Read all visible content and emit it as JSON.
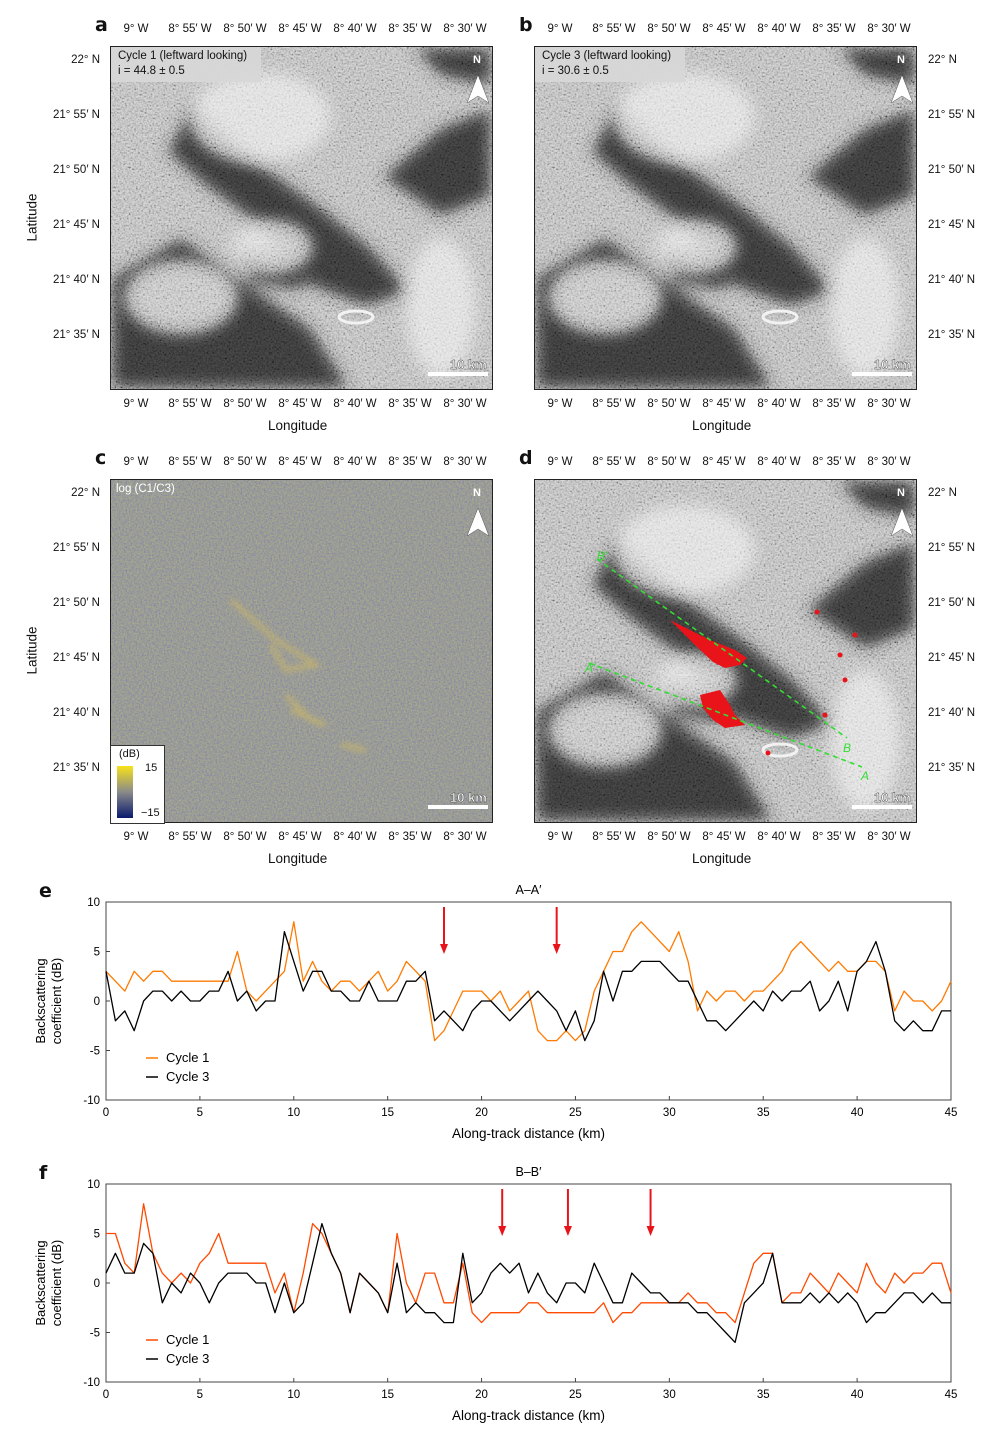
{
  "panels": {
    "a": {
      "letter": "a",
      "caption_line1": "Cycle 1 (leftward looking)",
      "caption_line2": "i = 44.8 ± 0.5",
      "north": "N",
      "scale": "10 km",
      "xlabel": "Longitude",
      "ylabel": "Latitude",
      "imagery": "SAR backscatter, grayscale"
    },
    "b": {
      "letter": "b",
      "caption_line1": "Cycle 3 (leftward looking)",
      "caption_line2": "i = 30.6 ± 0.5",
      "north": "N",
      "scale": "10 km",
      "xlabel": "Longitude"
    },
    "c": {
      "letter": "c",
      "caption_line1": "log (C1/C3)",
      "north": "N",
      "scale": "10 km",
      "xlabel": "Longitude",
      "ylabel": "Latitude",
      "colorbar": {
        "unit": "(dB)",
        "max": "15",
        "min": "−15",
        "colors": [
          "#0a1a6e",
          "#8a8a8a",
          "#f7e21a"
        ]
      }
    },
    "d": {
      "letter": "d",
      "north": "N",
      "scale": "10 km",
      "xlabel": "Longitude",
      "profile_labels": {
        "a_start": "A′",
        "a_end": "A",
        "b_start": "B′",
        "b_end": "B"
      },
      "overlay_colors": {
        "change": "#e8141a",
        "profile": "#33dd33"
      }
    }
  },
  "lon_ticks": [
    "9° W",
    "8° 55′ W",
    "8° 50′ W",
    "8° 45′ W",
    "8° 40′ W",
    "8° 35′ W",
    "8° 30′ W"
  ],
  "lat_ticks": [
    "22° N",
    "21° 55′ N",
    "21° 50′ N",
    "21° 45′ N",
    "21° 40′ N",
    "21° 35′ N"
  ],
  "chart_data": [
    {
      "panel": "e",
      "type": "line",
      "title": "A–A′",
      "xlabel": "Along-track distance (km)",
      "ylabel": "Backscattering coefficient (dB)",
      "xlim": [
        0,
        45
      ],
      "ylim": [
        -10,
        10
      ],
      "xticks": [
        0,
        5,
        10,
        15,
        20,
        25,
        30,
        35,
        40,
        45
      ],
      "yticks": [
        -10,
        -5,
        0,
        5,
        10
      ],
      "grid": false,
      "legend": "bottom-left",
      "arrows_km": [
        18,
        24
      ],
      "x_step_km": 0.5,
      "series": [
        {
          "name": "Cycle 1",
          "color": "#ff7a00",
          "values": [
            3,
            2,
            1,
            3,
            2,
            3,
            3,
            2,
            2,
            2,
            2,
            2,
            2,
            2,
            5,
            1,
            0,
            1,
            2,
            3,
            8,
            2,
            4,
            2,
            1,
            2,
            2,
            1,
            2,
            3,
            1,
            2,
            4,
            3,
            2,
            -4,
            -3,
            -1,
            1,
            1,
            1,
            0,
            1,
            -1,
            0,
            1,
            -3,
            -4,
            -4,
            -3,
            -4,
            -3,
            1,
            3,
            5,
            5,
            7,
            8,
            7,
            6,
            5,
            7,
            4,
            -1,
            1,
            0,
            1,
            1,
            0,
            1,
            1,
            2,
            3,
            5,
            6,
            5,
            4,
            3,
            4,
            3,
            3,
            4,
            4,
            3,
            -1,
            1,
            0,
            0,
            -1,
            0,
            2
          ]
        },
        {
          "name": "Cycle 3",
          "color": "#000000",
          "values": [
            3,
            -2,
            -1,
            -3,
            0,
            1,
            1,
            0,
            1,
            0,
            0,
            1,
            1,
            3,
            0,
            1,
            -1,
            0,
            0,
            7,
            4,
            1,
            3,
            3,
            1,
            1,
            0,
            0,
            2,
            0,
            0,
            0,
            2,
            2,
            3,
            -2,
            -1,
            -2,
            -3,
            -1,
            0,
            0,
            -1,
            -2,
            -1,
            0,
            1,
            0,
            -1,
            -3,
            -1,
            -4,
            -2,
            3,
            0,
            3,
            3,
            4,
            4,
            4,
            3,
            2,
            2,
            0,
            -2,
            -2,
            -3,
            -2,
            -1,
            0,
            -1,
            1,
            0,
            1,
            1,
            2,
            -1,
            0,
            2,
            -1,
            3,
            4,
            6,
            3,
            -2,
            -3,
            -2,
            -3,
            -3,
            -1,
            -1
          ]
        }
      ]
    },
    {
      "panel": "f",
      "type": "line",
      "title": "B–B′",
      "xlabel": "Along-track distance (km)",
      "ylabel": "Backscattering coefficient (dB)",
      "xlim": [
        0,
        45
      ],
      "ylim": [
        -10,
        10
      ],
      "xticks": [
        0,
        5,
        10,
        15,
        20,
        25,
        30,
        35,
        40,
        45
      ],
      "yticks": [
        -10,
        -5,
        0,
        5,
        10
      ],
      "grid": false,
      "legend": "bottom-left",
      "arrows_km": [
        21.1,
        24.6,
        29.0
      ],
      "x_step_km": 0.5,
      "series": [
        {
          "name": "Cycle 1",
          "color": "#ff4a00",
          "values": [
            5,
            5,
            2,
            1,
            8,
            3,
            1,
            0,
            1,
            0,
            2,
            3,
            5,
            2,
            2,
            2,
            2,
            2,
            -1,
            1,
            -3,
            1,
            6,
            5,
            3,
            1,
            -3,
            1,
            0,
            -1,
            -3,
            5,
            0,
            -2,
            1,
            1,
            -2,
            -2,
            2,
            -3,
            -4,
            -3,
            -3,
            -3,
            -3,
            -2,
            -2,
            -3,
            -3,
            -3,
            -3,
            -3,
            -3,
            -2,
            -4,
            -3,
            -3,
            -2,
            -2,
            -2,
            -2,
            -2,
            -1,
            -2,
            -2,
            -3,
            -3,
            -4,
            -1,
            2,
            3,
            3,
            -2,
            -1,
            -1,
            1,
            0,
            -1,
            1,
            0,
            -1,
            2,
            0,
            -1,
            1,
            0,
            1,
            1,
            2,
            2,
            -1
          ]
        },
        {
          "name": "Cycle 3",
          "color": "#000000",
          "values": [
            1,
            3,
            1,
            1,
            4,
            3,
            -2,
            0,
            -1,
            1,
            0,
            -2,
            0,
            1,
            1,
            1,
            0,
            0,
            -3,
            0,
            -3,
            -2,
            2,
            6,
            3,
            1,
            -3,
            1,
            0,
            -1,
            -3,
            2,
            -3,
            -2,
            -3,
            -3,
            -4,
            -4,
            3,
            -2,
            -1,
            1,
            2,
            1,
            2,
            -1,
            1,
            -1,
            -2,
            0,
            0,
            -1,
            2,
            0,
            -2,
            -2,
            1,
            0,
            -1,
            -1,
            -2,
            -2,
            -2,
            -3,
            -3,
            -4,
            -5,
            -6,
            -2,
            -1,
            0,
            3,
            -2,
            -2,
            -2,
            -1,
            -2,
            -1,
            -2,
            -1,
            -2,
            -4,
            -3,
            -3,
            -2,
            -1,
            -1,
            -2,
            -1,
            -2,
            -2
          ]
        }
      ]
    }
  ]
}
